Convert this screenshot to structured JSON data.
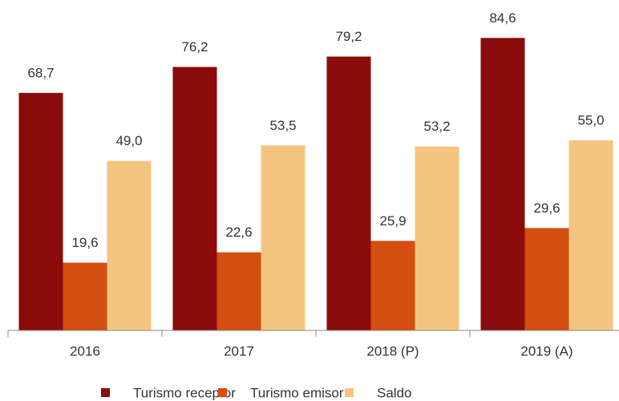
{
  "chart_data": {
    "type": "bar",
    "categories": [
      "2016",
      "2017",
      "2018 (P)",
      "2019 (A)"
    ],
    "series": [
      {
        "name": "Turismo receptor",
        "color": "#8b0a0a",
        "values": [
          68.7,
          76.2,
          79.2,
          84.6
        ],
        "value_labels": [
          "68,7",
          "76,2",
          "79,2",
          "84,6"
        ]
      },
      {
        "name": "Turismo emisor",
        "color": "#d44e10",
        "values": [
          19.6,
          22.6,
          25.9,
          29.6
        ],
        "value_labels": [
          "19,6",
          "22,6",
          "25,9",
          "29,6"
        ]
      },
      {
        "name": "Saldo",
        "color": "#f5c580",
        "values": [
          49.0,
          53.5,
          53.2,
          55.0
        ],
        "value_labels": [
          "49,0",
          "53,5",
          "53,2",
          "55,0"
        ]
      }
    ],
    "ylim": [
      0,
      90
    ],
    "legend": "bottom"
  }
}
